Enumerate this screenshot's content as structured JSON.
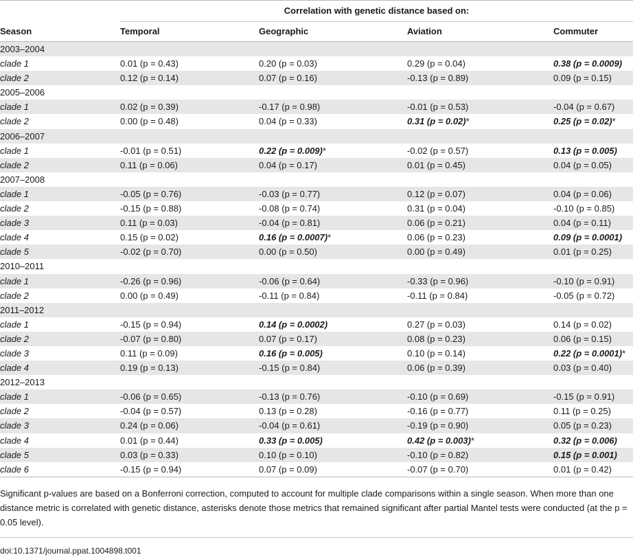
{
  "table": {
    "group_header": "Correlation with genetic distance based on:",
    "columns": [
      "Season",
      "Temporal",
      "Geographic",
      "Aviation",
      "Commuter"
    ],
    "seasons": [
      {
        "label": "2003–2004",
        "rows": [
          {
            "clade": "clade 1",
            "cells": [
              {
                "text": "0.01 (p = 0.43)",
                "sig": false,
                "star": false
              },
              {
                "text": "0.20 (p = 0.03)",
                "sig": false,
                "star": false
              },
              {
                "text": "0.29 (p = 0.04)",
                "sig": false,
                "star": false
              },
              {
                "text": "0.38 (p = 0.0009)",
                "sig": true,
                "star": false
              }
            ]
          },
          {
            "clade": "clade 2",
            "cells": [
              {
                "text": "0.12 (p = 0.14)",
                "sig": false,
                "star": false
              },
              {
                "text": "0.07 (p = 0.16)",
                "sig": false,
                "star": false
              },
              {
                "text": "-0.13 (p = 0.89)",
                "sig": false,
                "star": false
              },
              {
                "text": "0.09 (p = 0.15)",
                "sig": false,
                "star": false
              }
            ]
          }
        ]
      },
      {
        "label": "2005–2006",
        "rows": [
          {
            "clade": "clade 1",
            "cells": [
              {
                "text": "0.02 (p = 0.39)",
                "sig": false,
                "star": false
              },
              {
                "text": "-0.17 (p = 0.98)",
                "sig": false,
                "star": false
              },
              {
                "text": "-0.01 (p = 0.53)",
                "sig": false,
                "star": false
              },
              {
                "text": "-0.04 (p = 0.67)",
                "sig": false,
                "star": false
              }
            ]
          },
          {
            "clade": "clade 2",
            "cells": [
              {
                "text": "0.00 (p = 0.48)",
                "sig": false,
                "star": false
              },
              {
                "text": "0.04 (p = 0.33)",
                "sig": false,
                "star": false
              },
              {
                "text": "0.31 (p = 0.02)",
                "sig": true,
                "star": true
              },
              {
                "text": "0.25 (p = 0.02)",
                "sig": true,
                "star": true
              }
            ]
          }
        ]
      },
      {
        "label": "2006–2007",
        "rows": [
          {
            "clade": "clade 1",
            "cells": [
              {
                "text": "-0.01 (p = 0.51)",
                "sig": false,
                "star": false
              },
              {
                "text": "0.22 (p = 0.009)",
                "sig": true,
                "star": true
              },
              {
                "text": "-0.02 (p = 0.57)",
                "sig": false,
                "star": false
              },
              {
                "text": "0.13 (p = 0.005)",
                "sig": true,
                "star": false
              }
            ]
          },
          {
            "clade": "clade 2",
            "cells": [
              {
                "text": "0.11 (p = 0.06)",
                "sig": false,
                "star": false
              },
              {
                "text": "0.04 (p = 0.17)",
                "sig": false,
                "star": false
              },
              {
                "text": "0.01 (p = 0.45)",
                "sig": false,
                "star": false
              },
              {
                "text": "0.04 (p = 0.05)",
                "sig": false,
                "star": false
              }
            ]
          }
        ]
      },
      {
        "label": "2007–2008",
        "rows": [
          {
            "clade": "clade 1",
            "cells": [
              {
                "text": "-0.05 (p = 0.76)",
                "sig": false,
                "star": false
              },
              {
                "text": "-0.03 (p = 0.77)",
                "sig": false,
                "star": false
              },
              {
                "text": "0.12 (p = 0.07)",
                "sig": false,
                "star": false
              },
              {
                "text": "0.04 (p = 0.06)",
                "sig": false,
                "star": false
              }
            ]
          },
          {
            "clade": "clade 2",
            "cells": [
              {
                "text": "-0.15 (p = 0.88)",
                "sig": false,
                "star": false
              },
              {
                "text": "-0.08 (p = 0.74)",
                "sig": false,
                "star": false
              },
              {
                "text": "0.31 (p = 0.04)",
                "sig": false,
                "star": false
              },
              {
                "text": "-0.10 (p = 0.85)",
                "sig": false,
                "star": false
              }
            ]
          },
          {
            "clade": "clade 3",
            "cells": [
              {
                "text": "0.11 (p = 0.03)",
                "sig": false,
                "star": false
              },
              {
                "text": "-0.04 (p = 0.81)",
                "sig": false,
                "star": false
              },
              {
                "text": "0.06 (p = 0.21)",
                "sig": false,
                "star": false
              },
              {
                "text": "0.04 (p = 0.11)",
                "sig": false,
                "star": false
              }
            ]
          },
          {
            "clade": "clade 4",
            "cells": [
              {
                "text": "0.15 (p = 0.02)",
                "sig": false,
                "star": false
              },
              {
                "text": "0.16 (p = 0.0007)",
                "sig": true,
                "star": true
              },
              {
                "text": "0.06 (p = 0.23)",
                "sig": false,
                "star": false
              },
              {
                "text": "0.09 (p = 0.0001)",
                "sig": true,
                "star": false
              }
            ]
          },
          {
            "clade": "clade 5",
            "cells": [
              {
                "text": "-0.02 (p = 0.70)",
                "sig": false,
                "star": false
              },
              {
                "text": "0.00 (p = 0.50)",
                "sig": false,
                "star": false
              },
              {
                "text": "0.00 (p = 0.49)",
                "sig": false,
                "star": false
              },
              {
                "text": "0.01 (p = 0.25)",
                "sig": false,
                "star": false
              }
            ]
          }
        ]
      },
      {
        "label": "2010–2011",
        "rows": [
          {
            "clade": "clade 1",
            "cells": [
              {
                "text": "-0.26 (p = 0.96)",
                "sig": false,
                "star": false
              },
              {
                "text": "-0.06 (p = 0.64)",
                "sig": false,
                "star": false
              },
              {
                "text": "-0.33 (p = 0.96)",
                "sig": false,
                "star": false
              },
              {
                "text": "-0.10 (p = 0.91)",
                "sig": false,
                "star": false
              }
            ]
          },
          {
            "clade": "clade 2",
            "cells": [
              {
                "text": "0.00 (p = 0.49)",
                "sig": false,
                "star": false
              },
              {
                "text": "-0.11 (p = 0.84)",
                "sig": false,
                "star": false
              },
              {
                "text": "-0.11 (p = 0.84)",
                "sig": false,
                "star": false
              },
              {
                "text": "-0.05 (p = 0.72)",
                "sig": false,
                "star": false
              }
            ]
          }
        ]
      },
      {
        "label": "2011–2012",
        "rows": [
          {
            "clade": "clade 1",
            "cells": [
              {
                "text": "-0.15 (p = 0.94)",
                "sig": false,
                "star": false
              },
              {
                "text": "0.14 (p = 0.0002)",
                "sig": true,
                "star": false
              },
              {
                "text": "0.27 (p = 0.03)",
                "sig": false,
                "star": false
              },
              {
                "text": "0.14 (p = 0.02)",
                "sig": false,
                "star": false
              }
            ]
          },
          {
            "clade": "clade 2",
            "cells": [
              {
                "text": "-0.07 (p = 0.80)",
                "sig": false,
                "star": false
              },
              {
                "text": "0.07 (p = 0.17)",
                "sig": false,
                "star": false
              },
              {
                "text": "0.08 (p = 0.23)",
                "sig": false,
                "star": false
              },
              {
                "text": "0.06 (p = 0.15)",
                "sig": false,
                "star": false
              }
            ]
          },
          {
            "clade": "clade 3",
            "cells": [
              {
                "text": "0.11 (p = 0.09)",
                "sig": false,
                "star": false
              },
              {
                "text": "0.16 (p = 0.005)",
                "sig": true,
                "star": false
              },
              {
                "text": "0.10 (p = 0.14)",
                "sig": false,
                "star": false
              },
              {
                "text": "0.22 (p = 0.0001)",
                "sig": true,
                "star": true
              }
            ]
          },
          {
            "clade": "clade 4",
            "cells": [
              {
                "text": "0.19 (p = 0.13)",
                "sig": false,
                "star": false
              },
              {
                "text": "-0.15 (p = 0.84)",
                "sig": false,
                "star": false
              },
              {
                "text": "0.06 (p = 0.39)",
                "sig": false,
                "star": false
              },
              {
                "text": "0.03 (p = 0.40)",
                "sig": false,
                "star": false
              }
            ]
          }
        ]
      },
      {
        "label": "2012–2013",
        "rows": [
          {
            "clade": "clade 1",
            "cells": [
              {
                "text": "-0.06 (p = 0.65)",
                "sig": false,
                "star": false
              },
              {
                "text": "-0.13 (p = 0.76)",
                "sig": false,
                "star": false
              },
              {
                "text": "-0.10 (p = 0.69)",
                "sig": false,
                "star": false
              },
              {
                "text": "-0.15 (p = 0.91)",
                "sig": false,
                "star": false
              }
            ]
          },
          {
            "clade": "clade 2",
            "cells": [
              {
                "text": "-0.04 (p = 0.57)",
                "sig": false,
                "star": false
              },
              {
                "text": "0.13 (p = 0.28)",
                "sig": false,
                "star": false
              },
              {
                "text": "-0.16 (p = 0.77)",
                "sig": false,
                "star": false
              },
              {
                "text": "0.11 (p = 0.25)",
                "sig": false,
                "star": false
              }
            ]
          },
          {
            "clade": "clade 3",
            "cells": [
              {
                "text": "0.24 (p = 0.06)",
                "sig": false,
                "star": false
              },
              {
                "text": "-0.04 (p = 0.61)",
                "sig": false,
                "star": false
              },
              {
                "text": "-0.19 (p = 0.90)",
                "sig": false,
                "star": false
              },
              {
                "text": "0.05 (p = 0.23)",
                "sig": false,
                "star": false
              }
            ]
          },
          {
            "clade": "clade 4",
            "cells": [
              {
                "text": "0.01 (p = 0.44)",
                "sig": false,
                "star": false
              },
              {
                "text": "0.33 (p = 0.005)",
                "sig": true,
                "star": false
              },
              {
                "text": "0.42 (p = 0.003)",
                "sig": true,
                "star": true
              },
              {
                "text": "0.32 (p = 0.006)",
                "sig": true,
                "star": false
              }
            ]
          },
          {
            "clade": "clade 5",
            "cells": [
              {
                "text": "0.03 (p = 0.33)",
                "sig": false,
                "star": false
              },
              {
                "text": "0.10 (p = 0.10)",
                "sig": false,
                "star": false
              },
              {
                "text": "-0.10 (p = 0.82)",
                "sig": false,
                "star": false
              },
              {
                "text": "0.15 (p = 0.001)",
                "sig": true,
                "star": false
              }
            ]
          },
          {
            "clade": "clade 6",
            "cells": [
              {
                "text": "-0.15 (p = 0.94)",
                "sig": false,
                "star": false
              },
              {
                "text": "0.07 (p = 0.09)",
                "sig": false,
                "star": false
              },
              {
                "text": "-0.07 (p = 0.70)",
                "sig": false,
                "star": false
              },
              {
                "text": "0.01 (p = 0.42)",
                "sig": false,
                "star": false
              }
            ]
          }
        ]
      }
    ],
    "asterisk": "*"
  },
  "footnote": "Significant p-values are based on a Bonferroni correction, computed to account for multiple clade comparisons within a single season. When more than one distance metric is correlated with genetic distance, asterisks denote those metrics that remained significant after partial Mantel tests were conducted (at the p = 0.05 level).",
  "doi": "doi:10.1371/journal.ppat.1004898.t001",
  "colors": {
    "shade": "#e6e6e6",
    "rule": "#b9b9b9",
    "text": "#1a1a1a"
  }
}
